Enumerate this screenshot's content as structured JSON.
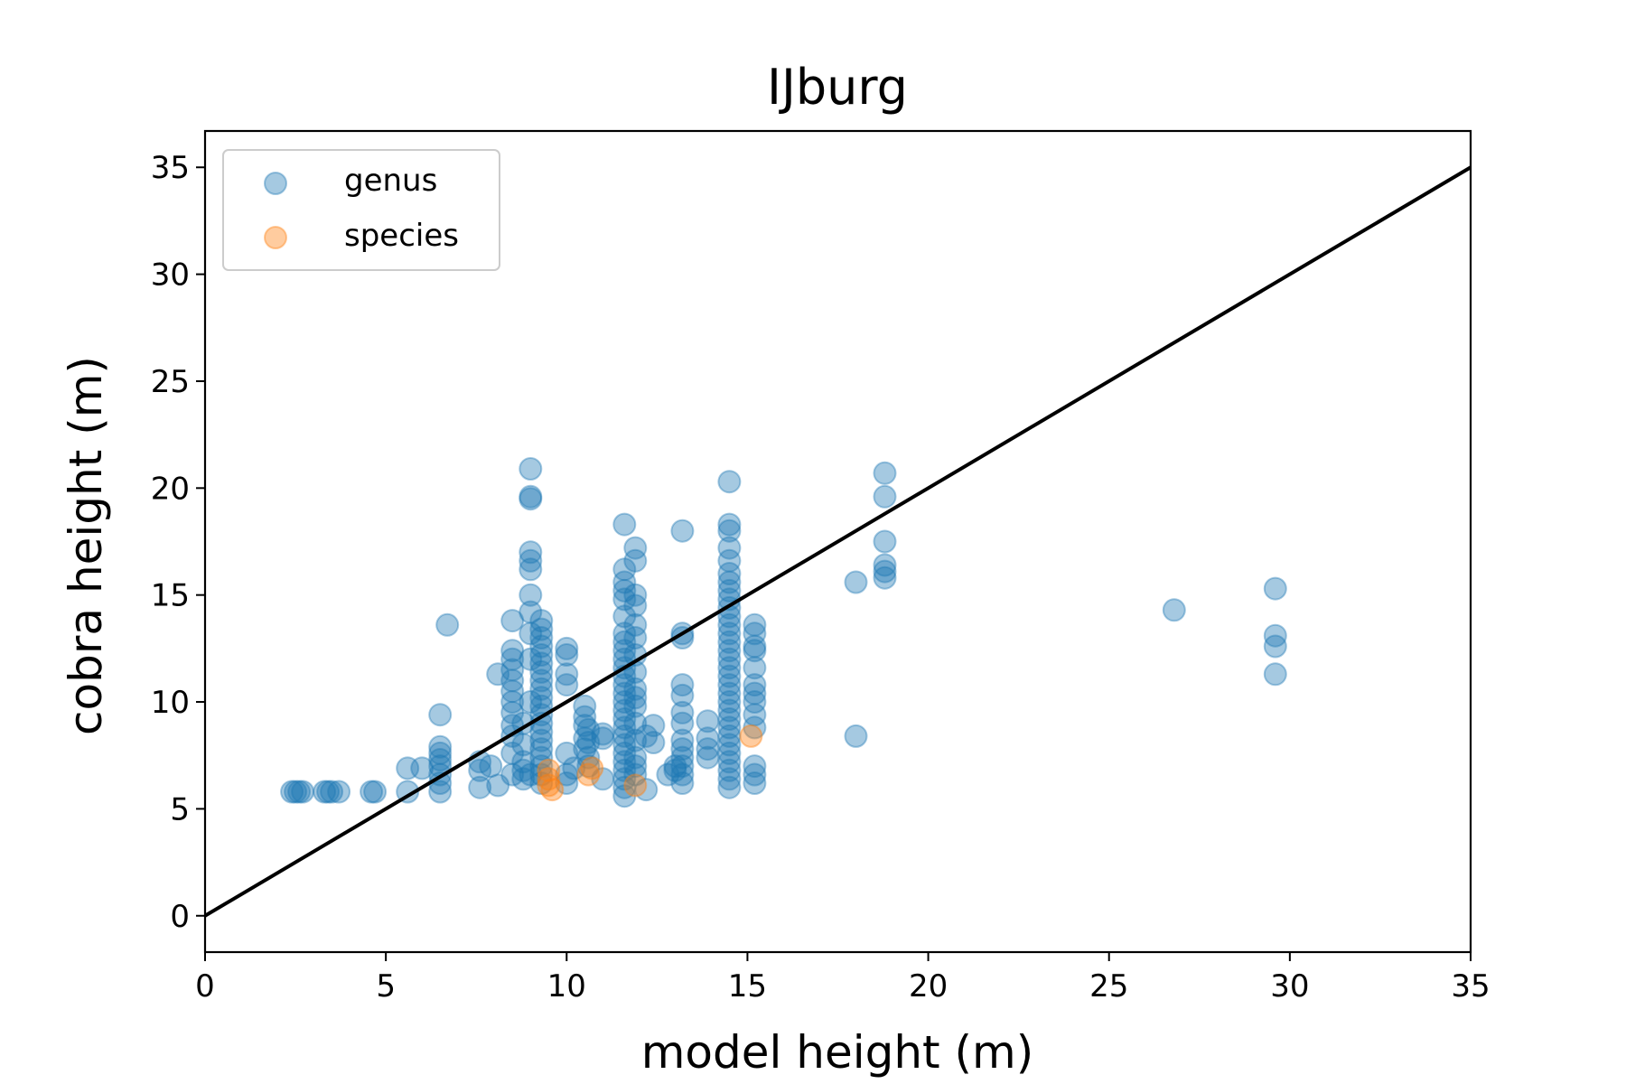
{
  "chart_data": {
    "type": "scatter",
    "title": "IJburg",
    "xlabel": "model height (m)",
    "ylabel": "cobra height (m)",
    "xlim": [
      0,
      35
    ],
    "ylim": [
      -1.7,
      36.7
    ],
    "xticks": [
      "0",
      "5",
      "10",
      "15",
      "20",
      "25",
      "30",
      "35"
    ],
    "yticks": [
      "0",
      "5",
      "10",
      "15",
      "20",
      "25",
      "30",
      "35"
    ],
    "grid": false,
    "legend_position": "top-left",
    "reference_line": {
      "x": [
        0,
        35
      ],
      "y": [
        0,
        35
      ],
      "color": "#000000"
    },
    "series": [
      {
        "name": "genus",
        "color": "#1f77b4",
        "points": [
          [
            2.4,
            5.8
          ],
          [
            2.5,
            5.8
          ],
          [
            2.6,
            5.8
          ],
          [
            2.7,
            5.8
          ],
          [
            3.3,
            5.8
          ],
          [
            3.4,
            5.8
          ],
          [
            3.5,
            5.8
          ],
          [
            3.7,
            5.8
          ],
          [
            4.6,
            5.8
          ],
          [
            4.7,
            5.8
          ],
          [
            5.6,
            5.8
          ],
          [
            5.6,
            6.9
          ],
          [
            6.0,
            6.9
          ],
          [
            6.5,
            5.8
          ],
          [
            6.5,
            6.2
          ],
          [
            6.5,
            6.6
          ],
          [
            6.5,
            7.0
          ],
          [
            6.5,
            7.3
          ],
          [
            6.5,
            7.6
          ],
          [
            6.5,
            7.9
          ],
          [
            6.5,
            9.4
          ],
          [
            6.7,
            13.6
          ],
          [
            7.6,
            6.0
          ],
          [
            7.6,
            6.8
          ],
          [
            7.6,
            7.2
          ],
          [
            7.9,
            7.0
          ],
          [
            8.1,
            6.1
          ],
          [
            8.1,
            11.3
          ],
          [
            8.5,
            6.6
          ],
          [
            8.5,
            7.6
          ],
          [
            8.5,
            8.4
          ],
          [
            8.5,
            8.9
          ],
          [
            8.5,
            9.5
          ],
          [
            8.5,
            10.0
          ],
          [
            8.5,
            10.5
          ],
          [
            8.5,
            11.0
          ],
          [
            8.5,
            11.5
          ],
          [
            8.5,
            12.0
          ],
          [
            8.5,
            12.4
          ],
          [
            8.5,
            13.8
          ],
          [
            8.8,
            6.4
          ],
          [
            8.8,
            6.8
          ],
          [
            8.8,
            7.2
          ],
          [
            8.8,
            8.0
          ],
          [
            8.8,
            9.0
          ],
          [
            9.0,
            6.6
          ],
          [
            9.0,
            10.0
          ],
          [
            9.0,
            12.0
          ],
          [
            9.0,
            13.2
          ],
          [
            9.0,
            14.2
          ],
          [
            9.0,
            15.0
          ],
          [
            9.0,
            16.2
          ],
          [
            9.0,
            16.6
          ],
          [
            9.0,
            17.0
          ],
          [
            9.0,
            19.5
          ],
          [
            9.0,
            19.6
          ],
          [
            9.0,
            20.9
          ],
          [
            9.3,
            6.2
          ],
          [
            9.3,
            6.6
          ],
          [
            9.3,
            7.0
          ],
          [
            9.3,
            7.4
          ],
          [
            9.3,
            7.8
          ],
          [
            9.3,
            8.2
          ],
          [
            9.3,
            8.6
          ],
          [
            9.3,
            9.0
          ],
          [
            9.3,
            9.4
          ],
          [
            9.3,
            9.8
          ],
          [
            9.3,
            10.2
          ],
          [
            9.3,
            10.6
          ],
          [
            9.3,
            11.0
          ],
          [
            9.3,
            11.4
          ],
          [
            9.3,
            11.8
          ],
          [
            9.3,
            12.2
          ],
          [
            9.3,
            12.6
          ],
          [
            9.3,
            13.0
          ],
          [
            9.3,
            13.4
          ],
          [
            9.3,
            13.8
          ],
          [
            10.0,
            6.2
          ],
          [
            10.0,
            6.6
          ],
          [
            10.0,
            7.6
          ],
          [
            10.0,
            10.8
          ],
          [
            10.0,
            11.3
          ],
          [
            10.0,
            12.2
          ],
          [
            10.0,
            12.5
          ],
          [
            10.2,
            6.9
          ],
          [
            10.5,
            7.8
          ],
          [
            10.5,
            8.3
          ],
          [
            10.5,
            8.9
          ],
          [
            10.5,
            9.3
          ],
          [
            10.5,
            9.8
          ],
          [
            10.6,
            7.0
          ],
          [
            10.6,
            7.4
          ],
          [
            10.6,
            8.1
          ],
          [
            10.6,
            8.7
          ],
          [
            11.0,
            6.4
          ],
          [
            11.0,
            8.3
          ],
          [
            11.0,
            8.5
          ],
          [
            11.6,
            5.6
          ],
          [
            11.6,
            6.0
          ],
          [
            11.6,
            6.4
          ],
          [
            11.6,
            6.8
          ],
          [
            11.6,
            7.2
          ],
          [
            11.6,
            7.6
          ],
          [
            11.6,
            8.0
          ],
          [
            11.6,
            8.4
          ],
          [
            11.6,
            8.8
          ],
          [
            11.6,
            9.2
          ],
          [
            11.6,
            9.6
          ],
          [
            11.6,
            10.0
          ],
          [
            11.6,
            10.4
          ],
          [
            11.6,
            10.8
          ],
          [
            11.6,
            11.2
          ],
          [
            11.6,
            11.6
          ],
          [
            11.6,
            12.0
          ],
          [
            11.6,
            12.4
          ],
          [
            11.6,
            12.8
          ],
          [
            11.6,
            13.2
          ],
          [
            11.6,
            14.0
          ],
          [
            11.6,
            14.8
          ],
          [
            11.6,
            15.2
          ],
          [
            11.6,
            15.6
          ],
          [
            11.6,
            16.2
          ],
          [
            11.6,
            18.3
          ],
          [
            11.9,
            6.6
          ],
          [
            11.9,
            7.0
          ],
          [
            11.9,
            7.4
          ],
          [
            11.9,
            8.2
          ],
          [
            11.9,
            9.0
          ],
          [
            11.9,
            9.8
          ],
          [
            11.9,
            10.2
          ],
          [
            11.9,
            10.6
          ],
          [
            11.9,
            11.4
          ],
          [
            11.9,
            12.2
          ],
          [
            11.9,
            13.0
          ],
          [
            11.9,
            13.6
          ],
          [
            11.9,
            14.5
          ],
          [
            11.9,
            15.0
          ],
          [
            11.9,
            16.6
          ],
          [
            11.9,
            17.2
          ],
          [
            12.2,
            5.9
          ],
          [
            12.2,
            8.4
          ],
          [
            12.4,
            8.1
          ],
          [
            12.4,
            8.9
          ],
          [
            12.8,
            6.6
          ],
          [
            13.0,
            6.8
          ],
          [
            13.0,
            7.0
          ],
          [
            13.2,
            6.2
          ],
          [
            13.2,
            6.6
          ],
          [
            13.2,
            7.0
          ],
          [
            13.2,
            7.4
          ],
          [
            13.2,
            7.8
          ],
          [
            13.2,
            8.2
          ],
          [
            13.2,
            9.0
          ],
          [
            13.2,
            9.5
          ],
          [
            13.2,
            10.3
          ],
          [
            13.2,
            10.8
          ],
          [
            13.2,
            13.0
          ],
          [
            13.2,
            13.2
          ],
          [
            13.2,
            18.0
          ],
          [
            13.9,
            7.4
          ],
          [
            13.9,
            7.8
          ],
          [
            13.9,
            8.3
          ],
          [
            13.9,
            9.1
          ],
          [
            14.5,
            6.0
          ],
          [
            14.5,
            6.4
          ],
          [
            14.5,
            6.8
          ],
          [
            14.5,
            7.2
          ],
          [
            14.5,
            7.6
          ],
          [
            14.5,
            8.0
          ],
          [
            14.5,
            8.4
          ],
          [
            14.5,
            8.8
          ],
          [
            14.5,
            9.2
          ],
          [
            14.5,
            9.6
          ],
          [
            14.5,
            10.0
          ],
          [
            14.5,
            10.4
          ],
          [
            14.5,
            10.8
          ],
          [
            14.5,
            11.2
          ],
          [
            14.5,
            11.6
          ],
          [
            14.5,
            12.0
          ],
          [
            14.5,
            12.4
          ],
          [
            14.5,
            12.8
          ],
          [
            14.5,
            13.2
          ],
          [
            14.5,
            13.6
          ],
          [
            14.5,
            14.0
          ],
          [
            14.5,
            14.4
          ],
          [
            14.5,
            14.8
          ],
          [
            14.5,
            15.2
          ],
          [
            14.5,
            15.6
          ],
          [
            14.5,
            16.0
          ],
          [
            14.5,
            16.6
          ],
          [
            14.5,
            17.2
          ],
          [
            14.5,
            18.0
          ],
          [
            14.5,
            18.3
          ],
          [
            14.5,
            20.3
          ],
          [
            15.2,
            6.2
          ],
          [
            15.2,
            6.6
          ],
          [
            15.2,
            7.0
          ],
          [
            15.2,
            8.8
          ],
          [
            15.2,
            9.4
          ],
          [
            15.2,
            10.0
          ],
          [
            15.2,
            10.4
          ],
          [
            15.2,
            10.8
          ],
          [
            15.2,
            11.6
          ],
          [
            15.2,
            12.4
          ],
          [
            15.2,
            12.6
          ],
          [
            15.2,
            13.2
          ],
          [
            15.2,
            13.6
          ],
          [
            18.0,
            8.4
          ],
          [
            18.0,
            15.6
          ],
          [
            18.8,
            15.8
          ],
          [
            18.8,
            16.1
          ],
          [
            18.8,
            16.4
          ],
          [
            18.8,
            17.5
          ],
          [
            18.8,
            19.6
          ],
          [
            18.8,
            20.7
          ],
          [
            26.8,
            14.3
          ],
          [
            29.6,
            11.3
          ],
          [
            29.6,
            12.6
          ],
          [
            29.6,
            13.1
          ],
          [
            29.6,
            15.3
          ]
        ]
      },
      {
        "name": "species",
        "color": "#ff7f0e",
        "points": [
          [
            9.5,
            6.1
          ],
          [
            9.5,
            6.4
          ],
          [
            9.5,
            6.8
          ],
          [
            9.6,
            5.9
          ],
          [
            10.6,
            6.6
          ],
          [
            10.7,
            6.9
          ],
          [
            11.9,
            6.1
          ],
          [
            15.1,
            8.4
          ]
        ]
      }
    ]
  }
}
